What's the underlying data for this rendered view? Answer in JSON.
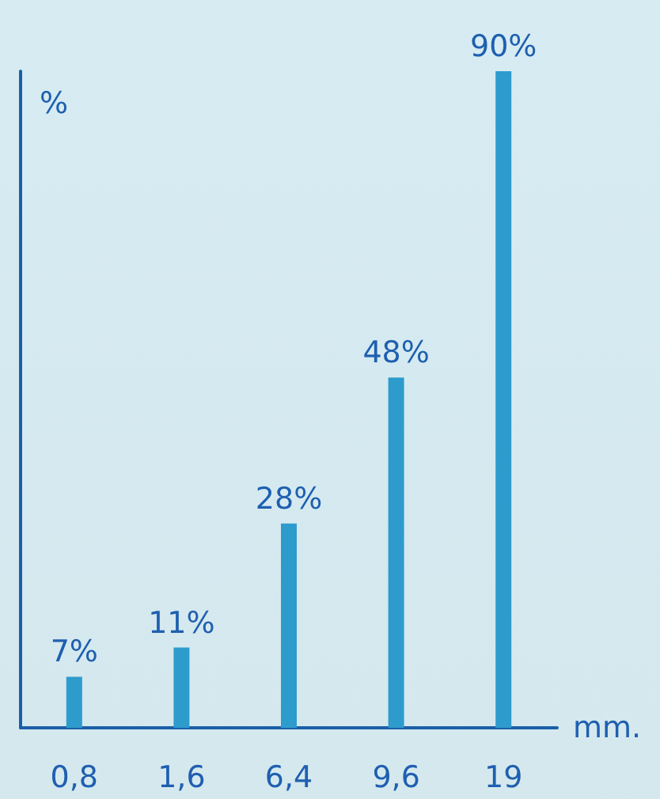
{
  "chart_data": {
    "type": "bar",
    "categories": [
      "0,8",
      "1,6",
      "6,4",
      "9,6",
      "19"
    ],
    "values": [
      7,
      11,
      28,
      48,
      90
    ],
    "value_labels": [
      "7%",
      "11%",
      "28%",
      "48%",
      "90%"
    ],
    "color": "#2e9bcd",
    "xlabel": "mm.",
    "ylabel": "%",
    "tick_labels": "x"
  }
}
